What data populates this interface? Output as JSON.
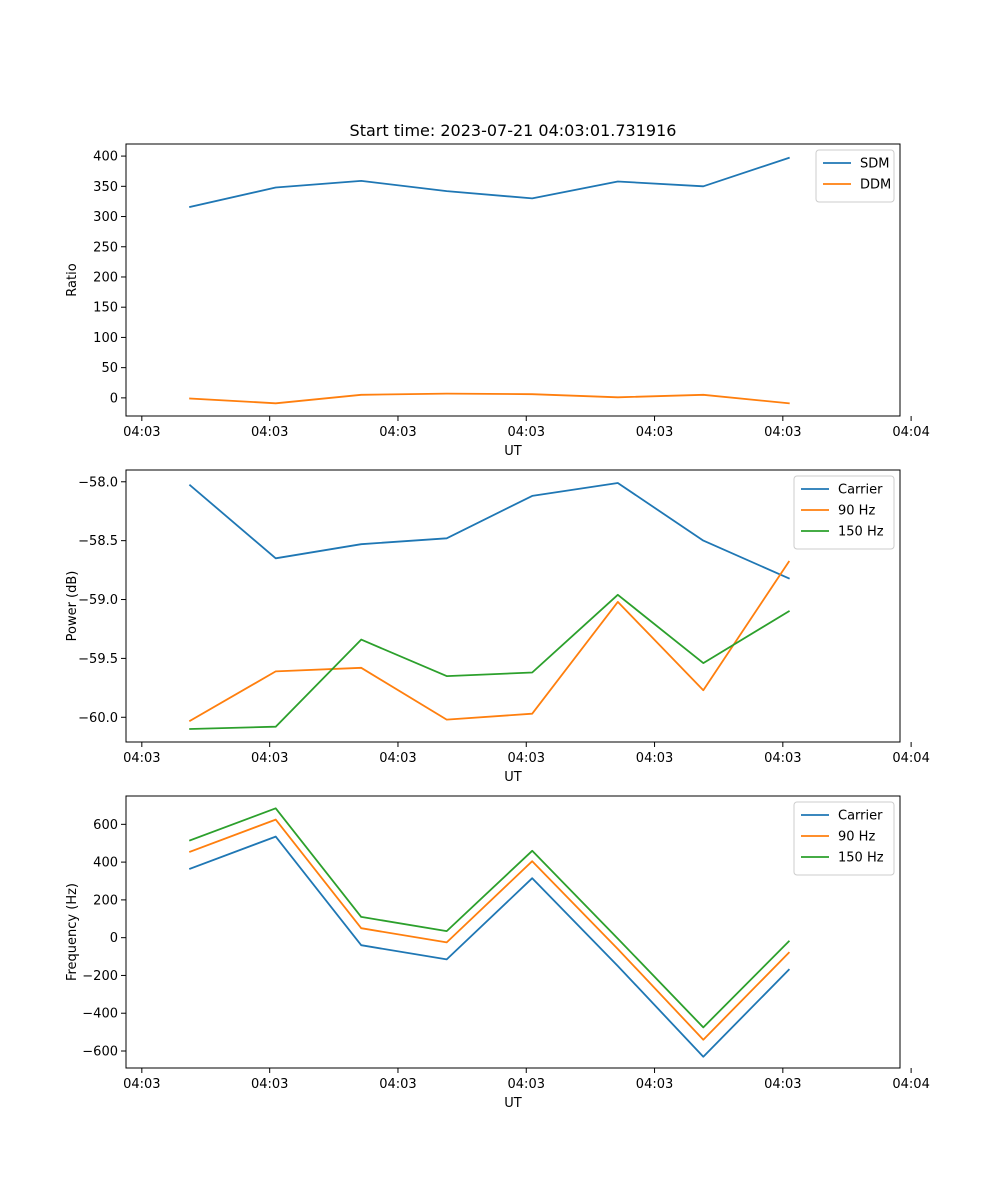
{
  "chart_data": [
    {
      "type": "line",
      "title": "Start time: 2023-07-21 04:03:01.731916",
      "xlabel": "UT",
      "ylabel": "Ratio",
      "x": [
        1,
        2,
        3,
        4,
        5,
        6,
        7,
        8
      ],
      "xlim": [
        0.25,
        9.3
      ],
      "xticks": [
        0.435,
        1.93,
        3.43,
        4.93,
        6.43,
        7.93,
        9.43
      ],
      "xtick_labels": [
        "04:03",
        "04:03",
        "04:03",
        "04:03",
        "04:03",
        "04:03",
        "04:04"
      ],
      "ylim": [
        -30,
        420
      ],
      "yticks": [
        0,
        50,
        100,
        150,
        200,
        250,
        300,
        350,
        400
      ],
      "ytick_labels": [
        "0",
        "50",
        "100",
        "150",
        "200",
        "250",
        "300",
        "350",
        "400"
      ],
      "legend_position": "top-right",
      "series": [
        {
          "name": "SDM",
          "color": "#1f77b4",
          "values": [
            316,
            348,
            359,
            342,
            330,
            358,
            350,
            397
          ]
        },
        {
          "name": "DDM",
          "color": "#ff7f0e",
          "values": [
            -1,
            -9,
            5,
            7,
            6,
            1,
            5,
            -9
          ]
        }
      ]
    },
    {
      "type": "line",
      "title": "",
      "xlabel": "UT",
      "ylabel": "Power (dB)",
      "x": [
        1,
        2,
        3,
        4,
        5,
        6,
        7,
        8
      ],
      "xlim": [
        0.25,
        9.3
      ],
      "xticks": [
        0.435,
        1.93,
        3.43,
        4.93,
        6.43,
        7.93,
        9.43
      ],
      "xtick_labels": [
        "04:03",
        "04:03",
        "04:03",
        "04:03",
        "04:03",
        "04:03",
        "04:04"
      ],
      "ylim": [
        -60.21,
        -57.9
      ],
      "yticks": [
        -60.0,
        -59.5,
        -59.0,
        -58.5,
        -58.0
      ],
      "ytick_labels": [
        "−60.0",
        "−59.5",
        "−59.0",
        "−58.5",
        "−58.0"
      ],
      "legend_position": "top-right",
      "series": [
        {
          "name": "Carrier",
          "color": "#1f77b4",
          "values": [
            -58.03,
            -58.65,
            -58.53,
            -58.48,
            -58.12,
            -58.01,
            -58.5,
            -58.82
          ]
        },
        {
          "name": "90 Hz",
          "color": "#ff7f0e",
          "values": [
            -60.03,
            -59.61,
            -59.58,
            -60.02,
            -59.97,
            -59.02,
            -59.77,
            -58.68
          ]
        },
        {
          "name": "150 Hz",
          "color": "#2ca02c",
          "values": [
            -60.1,
            -60.08,
            -59.34,
            -59.65,
            -59.62,
            -58.96,
            -59.54,
            -59.1
          ]
        }
      ]
    },
    {
      "type": "line",
      "title": "",
      "xlabel": "UT",
      "ylabel": "Frequency (Hz)",
      "x": [
        1,
        2,
        3,
        4,
        5,
        6,
        7,
        8
      ],
      "xlim": [
        0.25,
        9.3
      ],
      "xticks": [
        0.435,
        1.93,
        3.43,
        4.93,
        6.43,
        7.93,
        9.43
      ],
      "xtick_labels": [
        "04:03",
        "04:03",
        "04:03",
        "04:03",
        "04:03",
        "04:03",
        "04:04"
      ],
      "ylim": [
        -690,
        750
      ],
      "yticks": [
        -600,
        -400,
        -200,
        0,
        200,
        400,
        600
      ],
      "ytick_labels": [
        "−600",
        "−400",
        "−200",
        "0",
        "200",
        "400",
        "600"
      ],
      "legend_position": "top-right",
      "series": [
        {
          "name": "Carrier",
          "color": "#1f77b4",
          "values": [
            365,
            535,
            -40,
            -115,
            315,
            -150,
            -630,
            -170
          ]
        },
        {
          "name": "90 Hz",
          "color": "#ff7f0e",
          "values": [
            455,
            625,
            50,
            -25,
            405,
            -60,
            -540,
            -80
          ]
        },
        {
          "name": "150 Hz",
          "color": "#2ca02c",
          "values": [
            515,
            685,
            110,
            35,
            460,
            -5,
            -475,
            -20
          ]
        }
      ]
    }
  ]
}
